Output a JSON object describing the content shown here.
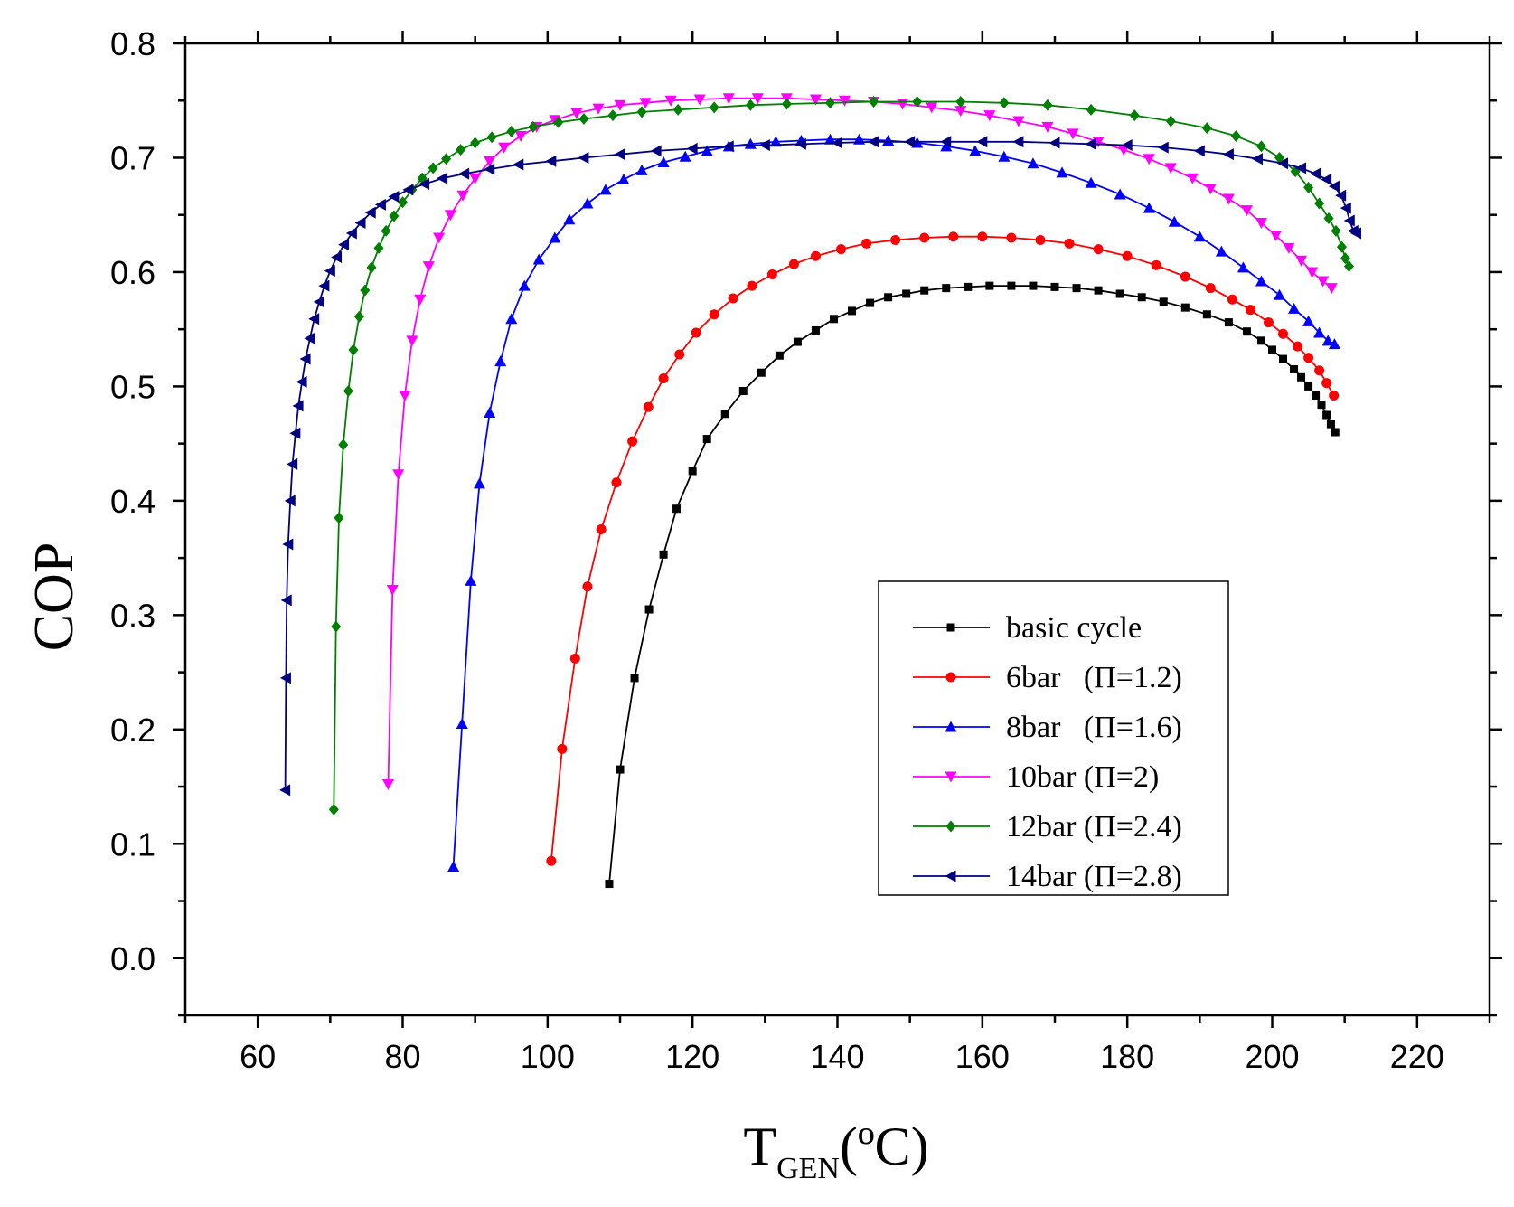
{
  "chart_data": {
    "type": "line",
    "title": "",
    "xlabel": {
      "main": "T",
      "sub": "GEN",
      "unit": "(ºC)"
    },
    "ylabel": "COP",
    "xlim": [
      50,
      230
    ],
    "ylim": [
      -0.05,
      0.8
    ],
    "x_ticks": [
      "60",
      "80",
      "100",
      "120",
      "140",
      "160",
      "180",
      "200",
      "220"
    ],
    "y_ticks": [
      "0.0",
      "0.1",
      "0.2",
      "0.3",
      "0.4",
      "0.5",
      "0.6",
      "0.7",
      "0.8"
    ],
    "legend_position": "lower-right",
    "series": [
      {
        "name": "basic cycle",
        "color": "#000000",
        "marker": "square",
        "points": [
          [
            108.5,
            0.065
          ],
          [
            110,
            0.165
          ],
          [
            112,
            0.245
          ],
          [
            114,
            0.305
          ],
          [
            116,
            0.353
          ],
          [
            117.8,
            0.393
          ],
          [
            120,
            0.426
          ],
          [
            122,
            0.454
          ],
          [
            124.5,
            0.476
          ],
          [
            127,
            0.496
          ],
          [
            129.5,
            0.512
          ],
          [
            132,
            0.527
          ],
          [
            134.5,
            0.539
          ],
          [
            137,
            0.549
          ],
          [
            139.5,
            0.559
          ],
          [
            142,
            0.566
          ],
          [
            144.5,
            0.573
          ],
          [
            147,
            0.578
          ],
          [
            149.5,
            0.581
          ],
          [
            152,
            0.584
          ],
          [
            155,
            0.586
          ],
          [
            158,
            0.587
          ],
          [
            161,
            0.588
          ],
          [
            164,
            0.588
          ],
          [
            167,
            0.588
          ],
          [
            170,
            0.587
          ],
          [
            173,
            0.586
          ],
          [
            176,
            0.584
          ],
          [
            179,
            0.581
          ],
          [
            182,
            0.578
          ],
          [
            185,
            0.574
          ],
          [
            188,
            0.569
          ],
          [
            191,
            0.563
          ],
          [
            194,
            0.556
          ],
          [
            196.5,
            0.548
          ],
          [
            198.5,
            0.54
          ],
          [
            200,
            0.532
          ],
          [
            201.5,
            0.524
          ],
          [
            203,
            0.515
          ],
          [
            204,
            0.508
          ],
          [
            205,
            0.5
          ],
          [
            206,
            0.492
          ],
          [
            206.8,
            0.484
          ],
          [
            207.5,
            0.475
          ],
          [
            208.1,
            0.467
          ],
          [
            208.7,
            0.46
          ]
        ]
      },
      {
        "name": "6bar   (Π=1.2)",
        "color": "#ff0000",
        "marker": "circle",
        "points": [
          [
            100.5,
            0.085
          ],
          [
            102,
            0.183
          ],
          [
            103.8,
            0.262
          ],
          [
            105.5,
            0.325
          ],
          [
            107.4,
            0.375
          ],
          [
            109.5,
            0.416
          ],
          [
            111.7,
            0.452
          ],
          [
            113.9,
            0.482
          ],
          [
            116,
            0.507
          ],
          [
            118.2,
            0.528
          ],
          [
            120.5,
            0.547
          ],
          [
            123,
            0.563
          ],
          [
            125.6,
            0.577
          ],
          [
            128.2,
            0.588
          ],
          [
            131,
            0.598
          ],
          [
            134,
            0.607
          ],
          [
            137,
            0.614
          ],
          [
            140.5,
            0.62
          ],
          [
            144,
            0.625
          ],
          [
            148,
            0.628
          ],
          [
            152,
            0.63
          ],
          [
            156,
            0.631
          ],
          [
            160,
            0.631
          ],
          [
            164,
            0.63
          ],
          [
            168,
            0.628
          ],
          [
            172,
            0.625
          ],
          [
            176,
            0.62
          ],
          [
            180,
            0.614
          ],
          [
            184,
            0.606
          ],
          [
            188,
            0.596
          ],
          [
            191.5,
            0.586
          ],
          [
            194.5,
            0.576
          ],
          [
            197,
            0.567
          ],
          [
            199.5,
            0.556
          ],
          [
            201.5,
            0.546
          ],
          [
            203.5,
            0.535
          ],
          [
            205,
            0.525
          ],
          [
            206.5,
            0.514
          ],
          [
            207.5,
            0.503
          ],
          [
            208.5,
            0.492
          ]
        ]
      },
      {
        "name": "8bar   (Π=1.6)",
        "color": "#0000ff",
        "marker": "triangle-up",
        "points": [
          [
            87,
            0.08
          ],
          [
            88.2,
            0.205
          ],
          [
            89.4,
            0.33
          ],
          [
            90.6,
            0.415
          ],
          [
            92,
            0.477
          ],
          [
            93.5,
            0.522
          ],
          [
            95,
            0.559
          ],
          [
            96.8,
            0.588
          ],
          [
            98.8,
            0.611
          ],
          [
            101,
            0.63
          ],
          [
            103,
            0.646
          ],
          [
            105.5,
            0.66
          ],
          [
            108,
            0.672
          ],
          [
            110.5,
            0.681
          ],
          [
            113,
            0.689
          ],
          [
            116,
            0.696
          ],
          [
            119,
            0.701
          ],
          [
            122,
            0.706
          ],
          [
            125,
            0.71
          ],
          [
            128,
            0.712
          ],
          [
            131.5,
            0.714
          ],
          [
            135,
            0.715
          ],
          [
            139,
            0.716
          ],
          [
            143,
            0.716
          ],
          [
            147,
            0.715
          ],
          [
            151,
            0.713
          ],
          [
            155,
            0.71
          ],
          [
            159,
            0.706
          ],
          [
            163,
            0.701
          ],
          [
            167,
            0.695
          ],
          [
            171,
            0.687
          ],
          [
            175,
            0.678
          ],
          [
            179,
            0.668
          ],
          [
            183,
            0.656
          ],
          [
            186.5,
            0.644
          ],
          [
            190,
            0.631
          ],
          [
            193,
            0.618
          ],
          [
            196,
            0.604
          ],
          [
            198.5,
            0.592
          ],
          [
            201,
            0.58
          ],
          [
            203,
            0.568
          ],
          [
            205,
            0.557
          ],
          [
            206.5,
            0.547
          ],
          [
            207.7,
            0.54
          ],
          [
            208.6,
            0.537
          ]
        ]
      },
      {
        "name": "10bar (Π=2)",
        "color": "#ff00ff",
        "marker": "triangle-down",
        "points": [
          [
            78,
            0.152
          ],
          [
            78.6,
            0.322
          ],
          [
            79.4,
            0.423
          ],
          [
            80.3,
            0.492
          ],
          [
            81.3,
            0.54
          ],
          [
            82.4,
            0.576
          ],
          [
            83.6,
            0.605
          ],
          [
            85,
            0.63
          ],
          [
            86.6,
            0.65
          ],
          [
            88.3,
            0.667
          ],
          [
            90,
            0.682
          ],
          [
            92,
            0.697
          ],
          [
            94,
            0.709
          ],
          [
            96.3,
            0.719
          ],
          [
            98.5,
            0.727
          ],
          [
            101,
            0.733
          ],
          [
            104,
            0.739
          ],
          [
            107,
            0.743
          ],
          [
            110,
            0.746
          ],
          [
            113.5,
            0.748
          ],
          [
            117,
            0.75
          ],
          [
            121,
            0.751
          ],
          [
            125,
            0.752
          ],
          [
            129,
            0.752
          ],
          [
            133,
            0.752
          ],
          [
            137,
            0.751
          ],
          [
            141,
            0.75
          ],
          [
            145,
            0.749
          ],
          [
            149,
            0.747
          ],
          [
            153,
            0.744
          ],
          [
            157,
            0.741
          ],
          [
            161,
            0.737
          ],
          [
            165,
            0.732
          ],
          [
            169,
            0.727
          ],
          [
            172.5,
            0.721
          ],
          [
            176,
            0.714
          ],
          [
            179.5,
            0.707
          ],
          [
            183,
            0.699
          ],
          [
            186,
            0.691
          ],
          [
            189,
            0.682
          ],
          [
            191.5,
            0.673
          ],
          [
            194,
            0.664
          ],
          [
            196.5,
            0.654
          ],
          [
            198.5,
            0.643
          ],
          [
            200.5,
            0.632
          ],
          [
            202.3,
            0.621
          ],
          [
            204,
            0.61
          ],
          [
            205.5,
            0.6
          ],
          [
            207,
            0.592
          ],
          [
            208.2,
            0.586
          ]
        ]
      },
      {
        "name": "12bar (Π=2.4)",
        "color": "#008000",
        "marker": "diamond",
        "points": [
          [
            70.5,
            0.13
          ],
          [
            70.8,
            0.29
          ],
          [
            71.2,
            0.385
          ],
          [
            71.8,
            0.449
          ],
          [
            72.5,
            0.496
          ],
          [
            73.2,
            0.532
          ],
          [
            74,
            0.561
          ],
          [
            74.8,
            0.584
          ],
          [
            75.7,
            0.604
          ],
          [
            76.7,
            0.621
          ],
          [
            77.7,
            0.636
          ],
          [
            78.8,
            0.649
          ],
          [
            80,
            0.661
          ],
          [
            81.3,
            0.672
          ],
          [
            82.7,
            0.682
          ],
          [
            84.2,
            0.691
          ],
          [
            86,
            0.699
          ],
          [
            88,
            0.707
          ],
          [
            90,
            0.713
          ],
          [
            92.3,
            0.718
          ],
          [
            95,
            0.723
          ],
          [
            98,
            0.727
          ],
          [
            101.5,
            0.731
          ],
          [
            105,
            0.734
          ],
          [
            109,
            0.737
          ],
          [
            113,
            0.74
          ],
          [
            118,
            0.742
          ],
          [
            123,
            0.744
          ],
          [
            128,
            0.746
          ],
          [
            133,
            0.747
          ],
          [
            139,
            0.748
          ],
          [
            145,
            0.749
          ],
          [
            151,
            0.749
          ],
          [
            157,
            0.749
          ],
          [
            163,
            0.748
          ],
          [
            169,
            0.746
          ],
          [
            175,
            0.742
          ],
          [
            181,
            0.737
          ],
          [
            186,
            0.732
          ],
          [
            191,
            0.726
          ],
          [
            195,
            0.719
          ],
          [
            198.5,
            0.71
          ],
          [
            201,
            0.7
          ],
          [
            203.2,
            0.688
          ],
          [
            205,
            0.674
          ],
          [
            206.5,
            0.66
          ],
          [
            207.8,
            0.647
          ],
          [
            208.8,
            0.636
          ],
          [
            209.6,
            0.622
          ],
          [
            210.1,
            0.612
          ],
          [
            210.6,
            0.605
          ]
        ]
      },
      {
        "name": "14bar (Π=2.8)",
        "color": "#000080",
        "marker": "triangle-left",
        "points": [
          [
            63.8,
            0.147
          ],
          [
            63.9,
            0.245
          ],
          [
            64,
            0.313
          ],
          [
            64.2,
            0.362
          ],
          [
            64.5,
            0.4
          ],
          [
            64.8,
            0.432
          ],
          [
            65.2,
            0.459
          ],
          [
            65.6,
            0.483
          ],
          [
            66.1,
            0.504
          ],
          [
            66.6,
            0.524
          ],
          [
            67.2,
            0.542
          ],
          [
            67.8,
            0.559
          ],
          [
            68.5,
            0.574
          ],
          [
            69.2,
            0.588
          ],
          [
            70,
            0.601
          ],
          [
            70.9,
            0.613
          ],
          [
            71.9,
            0.624
          ],
          [
            73,
            0.634
          ],
          [
            74.2,
            0.643
          ],
          [
            75.6,
            0.652
          ],
          [
            77,
            0.659
          ],
          [
            78.8,
            0.666
          ],
          [
            80.8,
            0.672
          ],
          [
            83,
            0.677
          ],
          [
            85.5,
            0.682
          ],
          [
            88.5,
            0.686
          ],
          [
            92,
            0.69
          ],
          [
            96,
            0.694
          ],
          [
            100.5,
            0.697
          ],
          [
            105,
            0.7
          ],
          [
            110,
            0.703
          ],
          [
            115,
            0.706
          ],
          [
            120,
            0.708
          ],
          [
            125,
            0.71
          ],
          [
            130,
            0.711
          ],
          [
            135,
            0.712
          ],
          [
            140,
            0.713
          ],
          [
            145,
            0.714
          ],
          [
            150,
            0.714
          ],
          [
            155,
            0.714
          ],
          [
            160,
            0.714
          ],
          [
            165,
            0.714
          ],
          [
            170,
            0.713
          ],
          [
            175,
            0.712
          ],
          [
            180,
            0.711
          ],
          [
            185,
            0.709
          ],
          [
            190,
            0.706
          ],
          [
            194,
            0.703
          ],
          [
            198,
            0.699
          ],
          [
            201.5,
            0.695
          ],
          [
            204,
            0.691
          ],
          [
            206,
            0.686
          ],
          [
            207.5,
            0.681
          ],
          [
            208.6,
            0.675
          ],
          [
            209.5,
            0.667
          ],
          [
            210.2,
            0.656
          ],
          [
            210.7,
            0.645
          ],
          [
            211.2,
            0.636
          ],
          [
            211.6,
            0.634
          ]
        ]
      }
    ]
  }
}
